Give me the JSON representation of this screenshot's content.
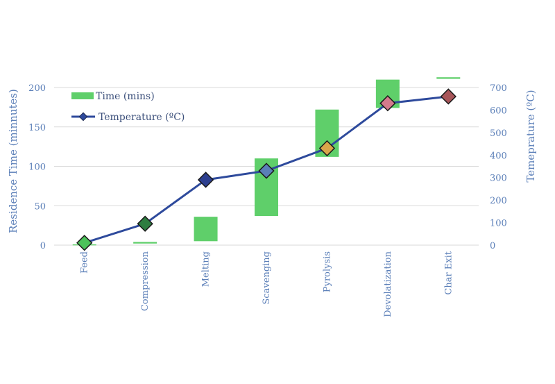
{
  "chart_data": {
    "type": "bar+line",
    "categories": [
      "Feed",
      "Compression",
      "Melting",
      "Scavenging",
      "Pyrolysis",
      "Devolatization",
      "Char Exit"
    ],
    "series": [
      {
        "name": "Time (mins)",
        "kind": "floating-bar",
        "axis": "left",
        "color": "#5fcf6a",
        "values": [
          [
            0,
            1
          ],
          [
            2,
            4
          ],
          [
            5,
            36
          ],
          [
            37,
            110
          ],
          [
            112,
            172
          ],
          [
            174,
            210
          ],
          [
            211,
            213
          ]
        ]
      },
      {
        "name": "Temperature (ºC)",
        "kind": "line",
        "axis": "right",
        "color": "#2e4a9c",
        "values": [
          10,
          95,
          290,
          330,
          430,
          630,
          660
        ],
        "marker_colors": [
          "#4cc25a",
          "#2e7d40",
          "#2d3f8f",
          "#5a7fb8",
          "#d9a64a",
          "#d47a8c",
          "#a8565a"
        ]
      }
    ],
    "ylabel": "Residence Time (minnutes)",
    "ylabel_right": "Temeprature (ºC)",
    "ylim": [
      0,
      200
    ],
    "ylim_right": [
      0,
      700
    ],
    "yticks": [
      "0",
      "50",
      "100",
      "150",
      "200"
    ],
    "yticks_right": [
      "0",
      "100",
      "200",
      "300",
      "400",
      "500",
      "600",
      "700"
    ],
    "grid": true,
    "legend_position": "top-left"
  }
}
